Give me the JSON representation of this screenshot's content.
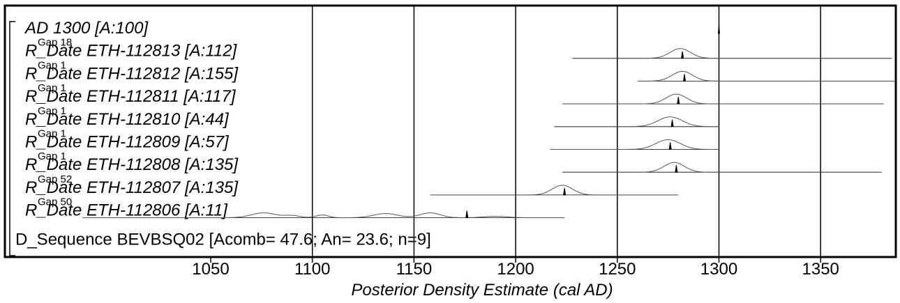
{
  "chart_data": {
    "type": "oxcal-multiplot",
    "xlabel": "Posterior Density Estimate (cal AD)",
    "xlim": [
      987,
      1388
    ],
    "xticks": [
      1050,
      1100,
      1150,
      1200,
      1250,
      1300,
      1350
    ],
    "grid": true,
    "rows": [
      {
        "label": "AD 1300 [A:100]",
        "gap": "",
        "kind": "fixed",
        "value": 1300
      },
      {
        "label": "R_Date ETH-112813 [A:112]",
        "gap": "Gap 18",
        "kind": "date",
        "mode": 1281,
        "sd": 5,
        "range": [
          1228,
          1385
        ]
      },
      {
        "label": "R_Date ETH-112812 [A:155]",
        "gap": "Gap 1",
        "kind": "date",
        "mode": 1282,
        "sd": 5,
        "range": [
          1260,
          1388
        ]
      },
      {
        "label": "R_Date ETH-112811 [A:117]",
        "gap": "Gap 1",
        "kind": "date",
        "mode": 1279,
        "sd": 5,
        "range": [
          1223,
          1381
        ]
      },
      {
        "label": "R_Date ETH-112810 [A:44]",
        "gap": "Gap 1",
        "kind": "date",
        "mode": 1276,
        "sd": 6,
        "range": [
          1219,
          1300
        ]
      },
      {
        "label": "R_Date ETH-112809 [A:57]",
        "gap": "Gap 1",
        "kind": "date",
        "mode": 1275,
        "sd": 6,
        "range": [
          1217,
          1300
        ]
      },
      {
        "label": "R_Date ETH-112808 [A:135]",
        "gap": "Gap 1",
        "kind": "date",
        "mode": 1278,
        "sd": 5,
        "range": [
          1223,
          1380
        ]
      },
      {
        "label": "R_Date ETH-112807 [A:135]",
        "gap": "Gap 52",
        "kind": "date",
        "mode": 1223,
        "sd": 5,
        "range": [
          1158,
          1280
        ]
      },
      {
        "label": "R_Date ETH-112806 [A:11]",
        "gap": "Gap 50",
        "kind": "date-broad",
        "mode": 1175,
        "range": [
          987,
          1224
        ]
      },
      {
        "label": "D_Sequence BEVBSQ02 [Acomb= 47.6; An= 23.6; n=9]",
        "gap": "",
        "kind": "summary"
      }
    ]
  }
}
